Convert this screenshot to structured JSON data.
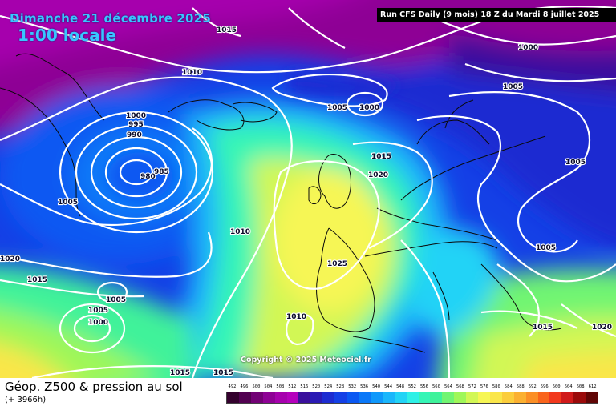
{
  "header": {
    "date": "Dimanche 21 décembre 2025",
    "time": "1:00 locale",
    "run": "Run CFS Daily (9 mois) 18 Z du Mardi 8 juillet 2025"
  },
  "copyright": "Copyright © 2025 Meteociel.fr",
  "footer": {
    "title": "Géop. Z500 & pression au sol",
    "subtitle": "(+ 3966h)"
  },
  "legend": {
    "values": [
      "492",
      "496",
      "500",
      "504",
      "508",
      "512",
      "516",
      "520",
      "524",
      "528",
      "532",
      "536",
      "540",
      "544",
      "548",
      "552",
      "556",
      "560",
      "564",
      "568",
      "572",
      "576",
      "580",
      "584",
      "588",
      "592",
      "596",
      "600",
      "604",
      "608",
      "612"
    ],
    "colors": [
      "#34012e",
      "#520151",
      "#720175",
      "#8e0195",
      "#a601ad",
      "#b401bc",
      "#3a0f9c",
      "#2a1ab4",
      "#1d2cd1",
      "#1440e6",
      "#0a58f2",
      "#0a78f8",
      "#0f98fb",
      "#1ab6fb",
      "#22d3f6",
      "#2ef0e6",
      "#35f5b6",
      "#3ff29a",
      "#71f572",
      "#9ff759",
      "#d2f755",
      "#f6f654",
      "#fae64a",
      "#fbcd3c",
      "#fbb031",
      "#fb8f26",
      "#f9641c",
      "#f2391d",
      "#d01a1a",
      "#9a0a0a",
      "#600505"
    ]
  },
  "map": {
    "isobars": [
      {
        "label": "1015"
      },
      {
        "label": "1010"
      },
      {
        "label": "1000"
      },
      {
        "label": "995"
      },
      {
        "label": "990"
      },
      {
        "label": "985"
      },
      {
        "label": "980"
      },
      {
        "label": "1005"
      },
      {
        "label": "1005"
      },
      {
        "label": "1000"
      },
      {
        "label": "1015"
      },
      {
        "label": "1020"
      },
      {
        "label": "1010"
      },
      {
        "label": "1025"
      },
      {
        "label": "1010"
      },
      {
        "label": "1005"
      },
      {
        "label": "1000"
      },
      {
        "label": "1005"
      },
      {
        "label": "1020"
      },
      {
        "label": "1015"
      },
      {
        "label": "1005"
      },
      {
        "label": "1005"
      },
      {
        "label": "1015"
      },
      {
        "label": "1020"
      },
      {
        "label": "1015"
      },
      {
        "label": "1015"
      },
      {
        "label": "1000"
      },
      {
        "label": "1005"
      }
    ]
  }
}
